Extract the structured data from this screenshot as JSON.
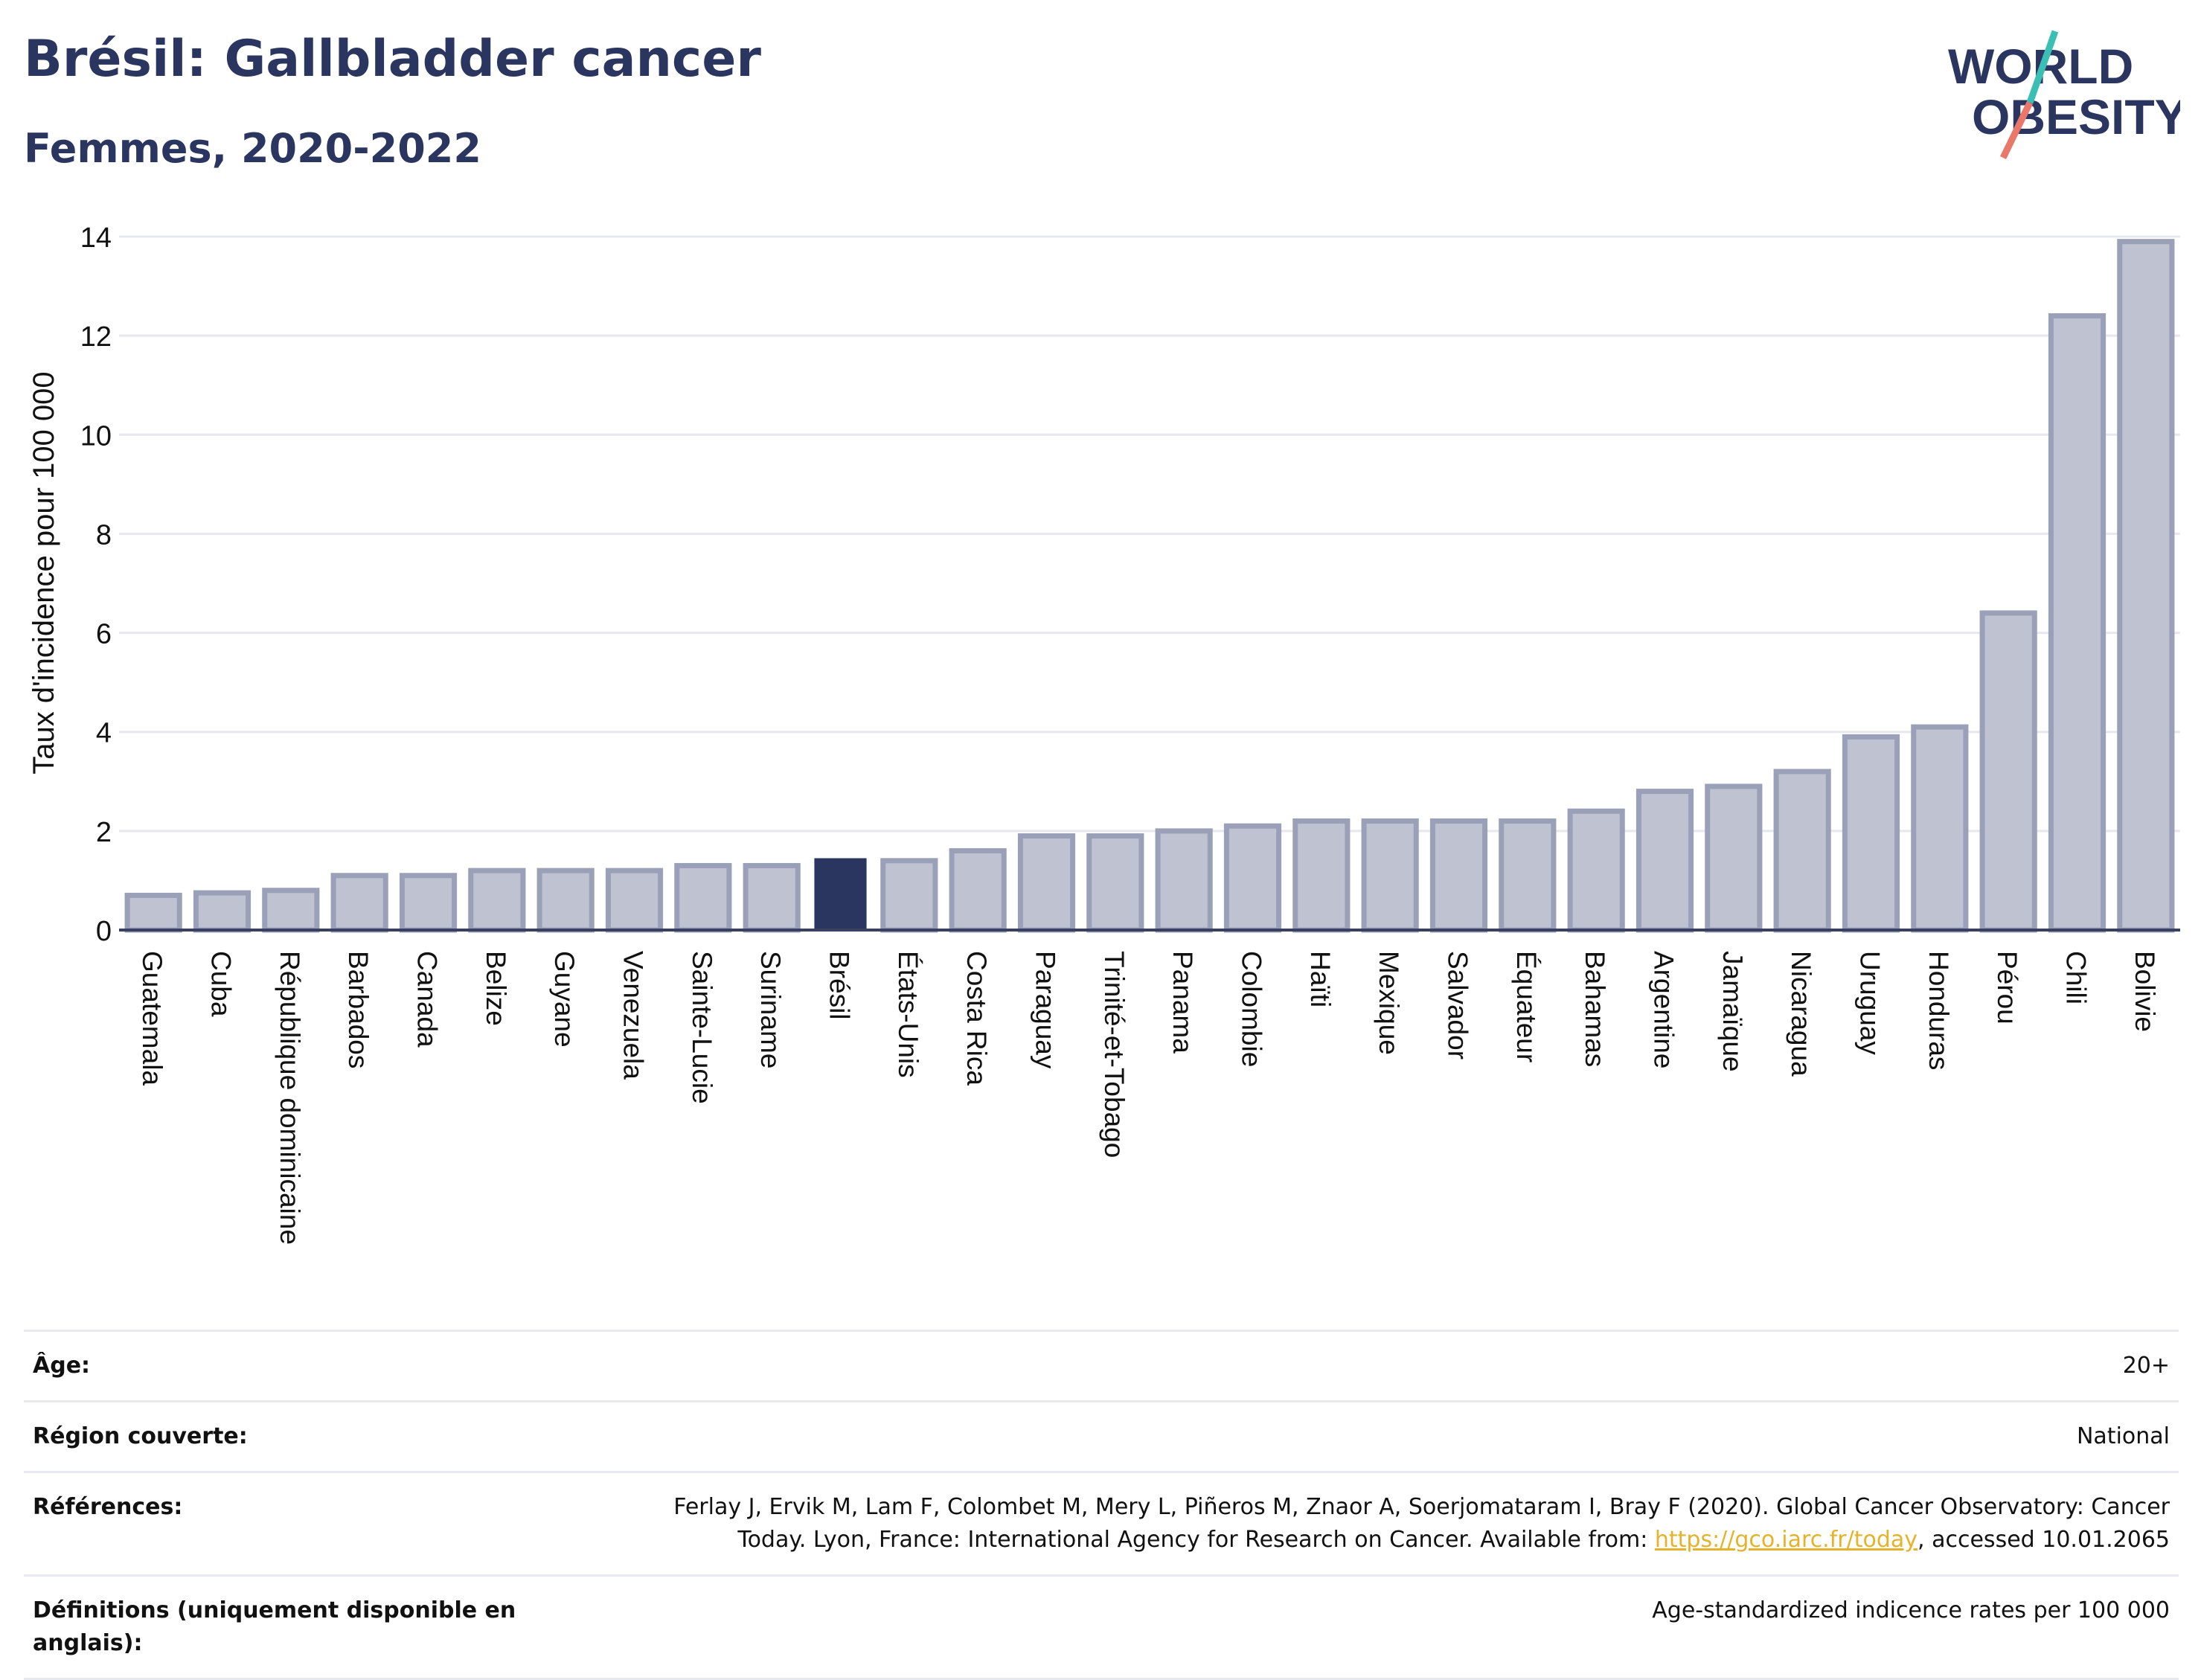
{
  "header": {
    "title": "Brésil: Gallbladder cancer",
    "subtitle": "Femmes, 2020-2022"
  },
  "logo": {
    "line1": "WORLD",
    "line2": "OBESITY"
  },
  "chart_data": {
    "type": "bar",
    "ylabel": "Taux d'incidence pour 100 000",
    "xlabel": "",
    "ylim": [
      0,
      14
    ],
    "yticks": [
      0,
      2,
      4,
      6,
      8,
      10,
      12,
      14
    ],
    "grid": true,
    "highlight": "Brésil",
    "colors": {
      "bar": "#bfc3d1",
      "bar_border": "#9aa0b8",
      "highlight": "#2b3660",
      "grid": "#e6e8ee",
      "axis": "#3a4160"
    },
    "categories": [
      "Guatemala",
      "Cuba",
      "République dominicaine",
      "Barbados",
      "Canada",
      "Belize",
      "Guyane",
      "Venezuela",
      "Sainte-Lucie",
      "Suriname",
      "Brésil",
      "États-Unis",
      "Costa Rica",
      "Paraguay",
      "Trinité-et-Tobago",
      "Panama",
      "Colombie",
      "Haïti",
      "Mexique",
      "Salvador",
      "Équateur",
      "Bahamas",
      "Argentine",
      "Jamaïque",
      "Nicaragua",
      "Uruguay",
      "Honduras",
      "Pérou",
      "Chili",
      "Bolivie"
    ],
    "values": [
      0.7,
      0.75,
      0.8,
      1.1,
      1.1,
      1.2,
      1.2,
      1.2,
      1.3,
      1.3,
      1.45,
      1.4,
      1.6,
      1.9,
      1.9,
      2.0,
      2.1,
      2.2,
      2.2,
      2.2,
      2.2,
      2.4,
      2.8,
      2.9,
      3.2,
      3.9,
      4.1,
      6.4,
      12.4,
      13.9
    ]
  },
  "meta": {
    "age_label": "Âge:",
    "age_value": "20+",
    "region_label": "Région couverte:",
    "region_value": "National",
    "refs_label": "Références:",
    "refs_line1": "Ferlay J, Ervik M, Lam F, Colombet M, Mery L, Piñeros M, Znaor A, Soerjomataram I, Bray F (2020). Global Cancer Observatory: Cancer",
    "refs_line2_pre": "Today. Lyon, France: International Agency for Research on Cancer. Available from: ",
    "refs_link": "https://gco.iarc.fr/today",
    "refs_line2_post": ", accessed 10.01.2065",
    "defs_label": "Définitions (uniquement disponible en anglais):",
    "defs_value": "Age-standardized indicence rates per 100 000"
  }
}
